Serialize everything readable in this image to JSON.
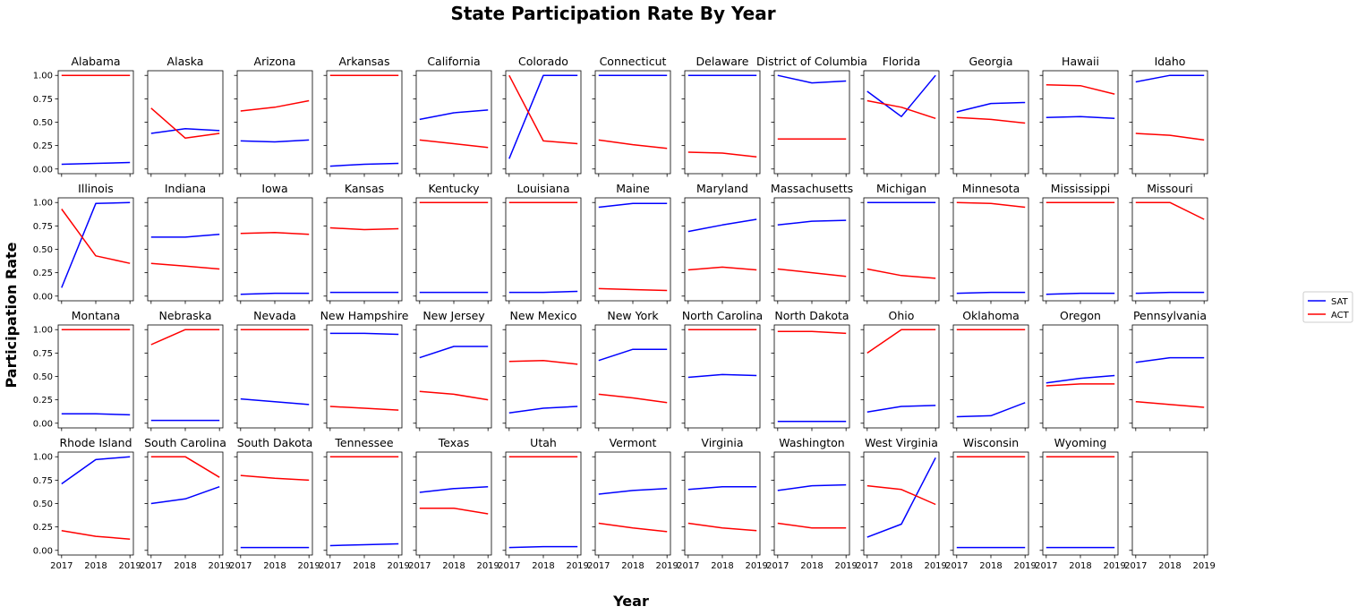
{
  "chart_data": {
    "type": "line",
    "title": "State Participation Rate By Year",
    "xlabel": "Year",
    "ylabel": "Participation Rate",
    "x": [
      "2017",
      "2018",
      "2019"
    ],
    "y_ticks": [
      "0.00",
      "0.25",
      "0.50",
      "0.75",
      "1.00"
    ],
    "ylim": [
      0,
      1
    ],
    "grid": false,
    "legend_position": "right",
    "series_styles": [
      {
        "name": "SAT",
        "color": "#0000ff"
      },
      {
        "name": "ACT",
        "color": "#ff0000"
      }
    ],
    "panels": [
      {
        "title": "Alabama",
        "SAT": [
          0.05,
          0.06,
          0.07
        ],
        "ACT": [
          1.0,
          1.0,
          1.0
        ]
      },
      {
        "title": "Alaska",
        "SAT": [
          0.38,
          0.43,
          0.41
        ],
        "ACT": [
          0.65,
          0.33,
          0.38
        ]
      },
      {
        "title": "Arizona",
        "SAT": [
          0.3,
          0.29,
          0.31
        ],
        "ACT": [
          0.62,
          0.66,
          0.73
        ]
      },
      {
        "title": "Arkansas",
        "SAT": [
          0.03,
          0.05,
          0.06
        ],
        "ACT": [
          1.0,
          1.0,
          1.0
        ]
      },
      {
        "title": "California",
        "SAT": [
          0.53,
          0.6,
          0.63
        ],
        "ACT": [
          0.31,
          0.27,
          0.23
        ]
      },
      {
        "title": "Colorado",
        "SAT": [
          0.11,
          1.0,
          1.0
        ],
        "ACT": [
          1.0,
          0.3,
          0.27
        ]
      },
      {
        "title": "Connecticut",
        "SAT": [
          1.0,
          1.0,
          1.0
        ],
        "ACT": [
          0.31,
          0.26,
          0.22
        ]
      },
      {
        "title": "Delaware",
        "SAT": [
          1.0,
          1.0,
          1.0
        ],
        "ACT": [
          0.18,
          0.17,
          0.13
        ]
      },
      {
        "title": "District of Columbia",
        "SAT": [
          1.0,
          0.92,
          0.94
        ],
        "ACT": [
          0.32,
          0.32,
          0.32
        ]
      },
      {
        "title": "Florida",
        "SAT": [
          0.83,
          0.56,
          1.0
        ],
        "ACT": [
          0.73,
          0.66,
          0.54
        ]
      },
      {
        "title": "Georgia",
        "SAT": [
          0.61,
          0.7,
          0.71
        ],
        "ACT": [
          0.55,
          0.53,
          0.49
        ]
      },
      {
        "title": "Hawaii",
        "SAT": [
          0.55,
          0.56,
          0.54
        ],
        "ACT": [
          0.9,
          0.89,
          0.8
        ]
      },
      {
        "title": "Idaho",
        "SAT": [
          0.93,
          1.0,
          1.0
        ],
        "ACT": [
          0.38,
          0.36,
          0.31
        ]
      },
      {
        "title": "Illinois",
        "SAT": [
          0.09,
          0.99,
          1.0
        ],
        "ACT": [
          0.93,
          0.43,
          0.35
        ]
      },
      {
        "title": "Indiana",
        "SAT": [
          0.63,
          0.63,
          0.66
        ],
        "ACT": [
          0.35,
          0.32,
          0.29
        ]
      },
      {
        "title": "Iowa",
        "SAT": [
          0.02,
          0.03,
          0.03
        ],
        "ACT": [
          0.67,
          0.68,
          0.66
        ]
      },
      {
        "title": "Kansas",
        "SAT": [
          0.04,
          0.04,
          0.04
        ],
        "ACT": [
          0.73,
          0.71,
          0.72
        ]
      },
      {
        "title": "Kentucky",
        "SAT": [
          0.04,
          0.04,
          0.04
        ],
        "ACT": [
          1.0,
          1.0,
          1.0
        ]
      },
      {
        "title": "Louisiana",
        "SAT": [
          0.04,
          0.04,
          0.05
        ],
        "ACT": [
          1.0,
          1.0,
          1.0
        ]
      },
      {
        "title": "Maine",
        "SAT": [
          0.95,
          0.99,
          0.99
        ],
        "ACT": [
          0.08,
          0.07,
          0.06
        ]
      },
      {
        "title": "Maryland",
        "SAT": [
          0.69,
          0.76,
          0.82
        ],
        "ACT": [
          0.28,
          0.31,
          0.28
        ]
      },
      {
        "title": "Massachusetts",
        "SAT": [
          0.76,
          0.8,
          0.81
        ],
        "ACT": [
          0.29,
          0.25,
          0.21
        ]
      },
      {
        "title": "Michigan",
        "SAT": [
          1.0,
          1.0,
          1.0
        ],
        "ACT": [
          0.29,
          0.22,
          0.19
        ]
      },
      {
        "title": "Minnesota",
        "SAT": [
          0.03,
          0.04,
          0.04
        ],
        "ACT": [
          1.0,
          0.99,
          0.95
        ]
      },
      {
        "title": "Mississippi",
        "SAT": [
          0.02,
          0.03,
          0.03
        ],
        "ACT": [
          1.0,
          1.0,
          1.0
        ]
      },
      {
        "title": "Missouri",
        "SAT": [
          0.03,
          0.04,
          0.04
        ],
        "ACT": [
          1.0,
          1.0,
          0.82
        ]
      },
      {
        "title": "Montana",
        "SAT": [
          0.1,
          0.1,
          0.09
        ],
        "ACT": [
          1.0,
          1.0,
          1.0
        ]
      },
      {
        "title": "Nebraska",
        "SAT": [
          0.03,
          0.03,
          0.03
        ],
        "ACT": [
          0.84,
          1.0,
          1.0
        ]
      },
      {
        "title": "Nevada",
        "SAT": [
          0.26,
          0.23,
          0.2
        ],
        "ACT": [
          1.0,
          1.0,
          1.0
        ]
      },
      {
        "title": "New Hampshire",
        "SAT": [
          0.96,
          0.96,
          0.95
        ],
        "ACT": [
          0.18,
          0.16,
          0.14
        ]
      },
      {
        "title": "New Jersey",
        "SAT": [
          0.7,
          0.82,
          0.82
        ],
        "ACT": [
          0.34,
          0.31,
          0.25
        ]
      },
      {
        "title": "New Mexico",
        "SAT": [
          0.11,
          0.16,
          0.18
        ],
        "ACT": [
          0.66,
          0.67,
          0.63
        ]
      },
      {
        "title": "New York",
        "SAT": [
          0.67,
          0.79,
          0.79
        ],
        "ACT": [
          0.31,
          0.27,
          0.22
        ]
      },
      {
        "title": "North Carolina",
        "SAT": [
          0.49,
          0.52,
          0.51
        ],
        "ACT": [
          1.0,
          1.0,
          1.0
        ]
      },
      {
        "title": "North Dakota",
        "SAT": [
          0.02,
          0.02,
          0.02
        ],
        "ACT": [
          0.98,
          0.98,
          0.96
        ]
      },
      {
        "title": "Ohio",
        "SAT": [
          0.12,
          0.18,
          0.19
        ],
        "ACT": [
          0.75,
          1.0,
          1.0
        ]
      },
      {
        "title": "Oklahoma",
        "SAT": [
          0.07,
          0.08,
          0.22
        ],
        "ACT": [
          1.0,
          1.0,
          1.0
        ]
      },
      {
        "title": "Oregon",
        "SAT": [
          0.43,
          0.48,
          0.51
        ],
        "ACT": [
          0.4,
          0.42,
          0.42
        ]
      },
      {
        "title": "Pennsylvania",
        "SAT": [
          0.65,
          0.7,
          0.7
        ],
        "ACT": [
          0.23,
          0.2,
          0.17
        ]
      },
      {
        "title": "Rhode Island",
        "SAT": [
          0.71,
          0.97,
          1.0
        ],
        "ACT": [
          0.21,
          0.15,
          0.12
        ]
      },
      {
        "title": "South Carolina",
        "SAT": [
          0.5,
          0.55,
          0.68
        ],
        "ACT": [
          1.0,
          1.0,
          0.78
        ]
      },
      {
        "title": "South Dakota",
        "SAT": [
          0.03,
          0.03,
          0.03
        ],
        "ACT": [
          0.8,
          0.77,
          0.75
        ]
      },
      {
        "title": "Tennessee",
        "SAT": [
          0.05,
          0.06,
          0.07
        ],
        "ACT": [
          1.0,
          1.0,
          1.0
        ]
      },
      {
        "title": "Texas",
        "SAT": [
          0.62,
          0.66,
          0.68
        ],
        "ACT": [
          0.45,
          0.45,
          0.39
        ]
      },
      {
        "title": "Utah",
        "SAT": [
          0.03,
          0.04,
          0.04
        ],
        "ACT": [
          1.0,
          1.0,
          1.0
        ]
      },
      {
        "title": "Vermont",
        "SAT": [
          0.6,
          0.64,
          0.66
        ],
        "ACT": [
          0.29,
          0.24,
          0.2
        ]
      },
      {
        "title": "Virginia",
        "SAT": [
          0.65,
          0.68,
          0.68
        ],
        "ACT": [
          0.29,
          0.24,
          0.21
        ]
      },
      {
        "title": "Washington",
        "SAT": [
          0.64,
          0.69,
          0.7
        ],
        "ACT": [
          0.29,
          0.24,
          0.24
        ]
      },
      {
        "title": "West Virginia",
        "SAT": [
          0.14,
          0.28,
          0.99
        ],
        "ACT": [
          0.69,
          0.65,
          0.49
        ]
      },
      {
        "title": "Wisconsin",
        "SAT": [
          0.03,
          0.03,
          0.03
        ],
        "ACT": [
          1.0,
          1.0,
          1.0
        ]
      },
      {
        "title": "Wyoming",
        "SAT": [
          0.03,
          0.03,
          0.03
        ],
        "ACT": [
          1.0,
          1.0,
          1.0
        ]
      },
      {
        "title": ""
      }
    ]
  }
}
